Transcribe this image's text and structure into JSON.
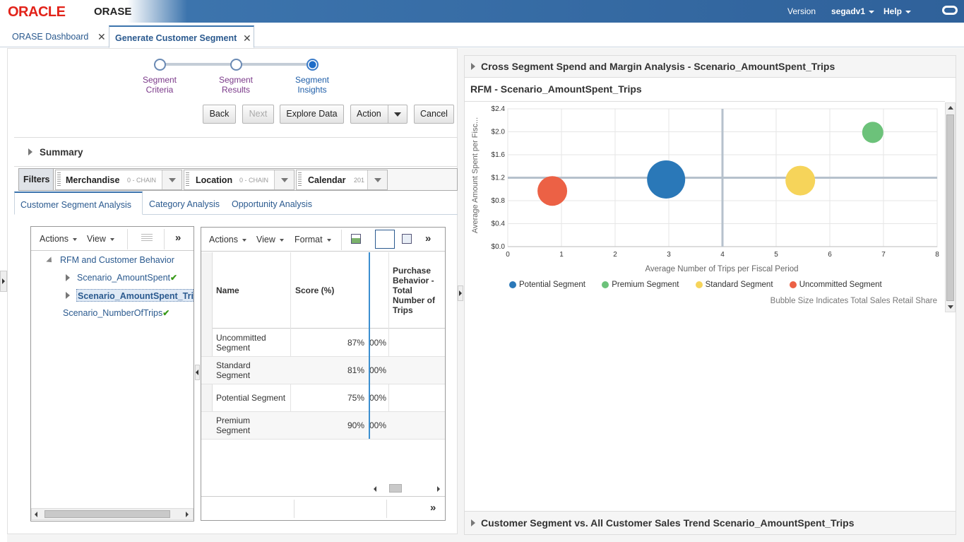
{
  "header": {
    "logo": "ORACLE",
    "app": "ORASE",
    "version": "Version",
    "user": "segadv1",
    "help": "Help"
  },
  "tabs": [
    {
      "label": "ORASE Dashboard"
    },
    {
      "label": "Generate Customer Segment"
    }
  ],
  "train": {
    "steps": [
      {
        "label1": "Segment",
        "label2": "Criteria"
      },
      {
        "label1": "Segment",
        "label2": "Results"
      },
      {
        "label1": "Segment",
        "label2": "Insights"
      }
    ]
  },
  "buttons": {
    "back": "Back",
    "next": "Next",
    "explore": "Explore Data",
    "action": "Action",
    "cancel": "Cancel"
  },
  "summary": "Summary",
  "filters": {
    "label": "Filters",
    "items": [
      {
        "name": "Merchandise",
        "sub": "0 - CHAIN"
      },
      {
        "name": "Location",
        "sub": "0 - CHAIN"
      },
      {
        "name": "Calendar",
        "sub": "201"
      }
    ]
  },
  "subtabs": [
    "Customer Segment Analysis",
    "Category Analysis",
    "Opportunity Analysis"
  ],
  "tree_toolbar": {
    "actions": "Actions",
    "view": "View",
    "more": "»"
  },
  "tree": {
    "root": "RFM and Customer Behavior",
    "children": [
      "Scenario_AmountSpent",
      "Scenario_AmountSpent_Trip"
    ],
    "other": "Scenario_NumberOfTrips"
  },
  "table_toolbar": {
    "actions": "Actions",
    "view": "View",
    "format": "Format",
    "more": "»"
  },
  "table": {
    "headers": {
      "name": "Name",
      "score": "Score (%)",
      "partial": "",
      "purchase": "Purchase Behavior - Total Number of Trips"
    },
    "rows": [
      {
        "name": "Uncommitted Segment",
        "score": "87%",
        "partial": "00%"
      },
      {
        "name": "Standard Segment",
        "score": "81%",
        "partial": "00%"
      },
      {
        "name": "Potential Segment",
        "score": "75%",
        "partial": "00%"
      },
      {
        "name": "Premium Segment",
        "score": "90%",
        "partial": "00%"
      }
    ],
    "footer_more": "»"
  },
  "right": {
    "section1": "Cross Segment Spend and Margin Analysis - Scenario_AmountSpent_Trips",
    "chart_title": "RFM - Scenario_AmountSpent_Trips",
    "section2": "Customer Segment vs. All Customer Sales Trend Scenario_AmountSpent_Trips",
    "note": "Bubble Size Indicates Total Sales Retail Share"
  },
  "chart_data": {
    "type": "scatter",
    "title": "RFM - Scenario_AmountSpent_Trips",
    "xlabel": "Average Number of Trips per Fiscal Period",
    "ylabel": "Average Amount Spent per Fisc...",
    "xlim": [
      0,
      8
    ],
    "ylim": [
      0,
      2.4
    ],
    "xticks": [
      "0",
      "1",
      "2",
      "3",
      "4",
      "5",
      "6",
      "7",
      "8"
    ],
    "yticks": [
      "$0.0",
      "$0.4",
      "$0.8",
      "$1.2",
      "$1.6",
      "$2.0",
      "$2.4"
    ],
    "reference_lines": {
      "x": 4,
      "y": 1.2
    },
    "grid": true,
    "legend_position": "bottom",
    "series": [
      {
        "name": "Potential Segment",
        "color": "#2a78b8",
        "x": 2.95,
        "y": 1.17,
        "size": 3
      },
      {
        "name": "Premium Segment",
        "color": "#6cc27a",
        "x": 6.8,
        "y": 1.99,
        "size": 1
      },
      {
        "name": "Standard Segment",
        "color": "#f6d45a",
        "x": 5.45,
        "y": 1.15,
        "size": 2
      },
      {
        "name": "Uncommitted Segment",
        "color": "#ec6145",
        "x": 0.83,
        "y": 0.97,
        "size": 2
      }
    ]
  }
}
